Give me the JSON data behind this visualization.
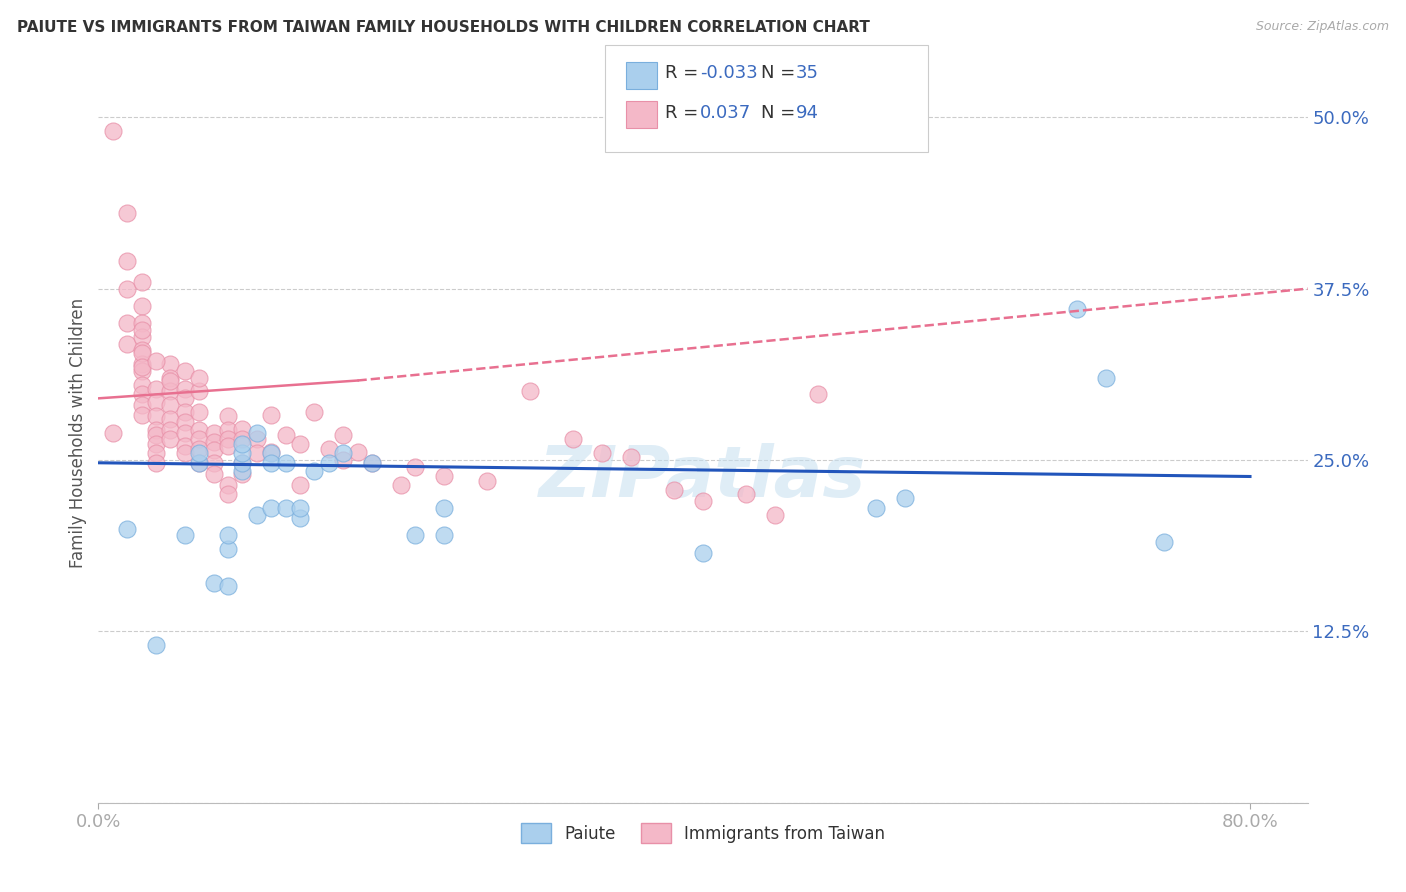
{
  "title": "PAIUTE VS IMMIGRANTS FROM TAIWAN FAMILY HOUSEHOLDS WITH CHILDREN CORRELATION CHART",
  "source": "Source: ZipAtlas.com",
  "ylabel": "Family Households with Children",
  "xlim": [
    0.0,
    0.84
  ],
  "ylim": [
    0.0,
    0.54
  ],
  "yticks": [
    0.0,
    0.125,
    0.25,
    0.375,
    0.5
  ],
  "ytick_labels": [
    "",
    "12.5%",
    "25.0%",
    "37.5%",
    "50.0%"
  ],
  "xtick_vals": [
    0.0,
    0.8
  ],
  "xtick_labels": [
    "0.0%",
    "80.0%"
  ],
  "blue_scatter_color": "#aacfed",
  "pink_scatter_color": "#f4b8c8",
  "blue_edge_color": "#7aafdd",
  "pink_edge_color": "#e890a8",
  "line_blue_color": "#2255bb",
  "line_pink_color": "#e87090",
  "watermark": "ZIPatlas",
  "paiute_line": [
    0.0,
    0.248,
    0.8,
    0.238
  ],
  "taiwan_line_solid": [
    0.0,
    0.295,
    0.18,
    0.308
  ],
  "taiwan_line_dash": [
    0.18,
    0.308,
    0.84,
    0.375
  ],
  "paiute_x": [
    0.02,
    0.04,
    0.06,
    0.07,
    0.07,
    0.08,
    0.09,
    0.09,
    0.09,
    0.1,
    0.1,
    0.1,
    0.1,
    0.11,
    0.11,
    0.12,
    0.12,
    0.12,
    0.13,
    0.13,
    0.14,
    0.14,
    0.15,
    0.16,
    0.17,
    0.19,
    0.22,
    0.24,
    0.24,
    0.42,
    0.54,
    0.56,
    0.68,
    0.7,
    0.74
  ],
  "paiute_y": [
    0.2,
    0.115,
    0.195,
    0.248,
    0.255,
    0.16,
    0.158,
    0.185,
    0.195,
    0.242,
    0.248,
    0.255,
    0.262,
    0.27,
    0.21,
    0.255,
    0.248,
    0.215,
    0.215,
    0.248,
    0.208,
    0.215,
    0.242,
    0.248,
    0.255,
    0.248,
    0.195,
    0.195,
    0.215,
    0.182,
    0.215,
    0.222,
    0.36,
    0.31,
    0.19
  ],
  "taiwan_x": [
    0.01,
    0.01,
    0.02,
    0.02,
    0.02,
    0.02,
    0.02,
    0.03,
    0.03,
    0.03,
    0.03,
    0.03,
    0.03,
    0.03,
    0.03,
    0.03,
    0.03,
    0.03,
    0.04,
    0.04,
    0.04,
    0.04,
    0.04,
    0.04,
    0.04,
    0.04,
    0.05,
    0.05,
    0.05,
    0.05,
    0.05,
    0.05,
    0.05,
    0.06,
    0.06,
    0.06,
    0.06,
    0.06,
    0.06,
    0.06,
    0.07,
    0.07,
    0.07,
    0.07,
    0.07,
    0.07,
    0.08,
    0.08,
    0.08,
    0.08,
    0.08,
    0.09,
    0.09,
    0.09,
    0.09,
    0.09,
    0.09,
    0.1,
    0.1,
    0.1,
    0.1,
    0.11,
    0.11,
    0.12,
    0.12,
    0.13,
    0.14,
    0.14,
    0.15,
    0.16,
    0.17,
    0.17,
    0.18,
    0.19,
    0.21,
    0.22,
    0.24,
    0.27,
    0.3,
    0.33,
    0.35,
    0.37,
    0.4,
    0.42,
    0.45,
    0.47,
    0.5,
    0.03,
    0.03,
    0.03,
    0.04,
    0.05,
    0.06,
    0.07
  ],
  "taiwan_y": [
    0.49,
    0.27,
    0.43,
    0.395,
    0.375,
    0.35,
    0.335,
    0.38,
    0.362,
    0.35,
    0.34,
    0.33,
    0.32,
    0.315,
    0.305,
    0.298,
    0.29,
    0.283,
    0.302,
    0.292,
    0.282,
    0.272,
    0.268,
    0.262,
    0.255,
    0.248,
    0.32,
    0.31,
    0.3,
    0.29,
    0.28,
    0.272,
    0.265,
    0.302,
    0.295,
    0.285,
    0.278,
    0.27,
    0.26,
    0.255,
    0.3,
    0.285,
    0.272,
    0.265,
    0.258,
    0.248,
    0.27,
    0.263,
    0.257,
    0.248,
    0.24,
    0.282,
    0.272,
    0.265,
    0.26,
    0.232,
    0.225,
    0.273,
    0.265,
    0.248,
    0.24,
    0.265,
    0.255,
    0.283,
    0.256,
    0.268,
    0.262,
    0.232,
    0.285,
    0.258,
    0.268,
    0.25,
    0.256,
    0.248,
    0.232,
    0.245,
    0.238,
    0.235,
    0.3,
    0.265,
    0.255,
    0.252,
    0.228,
    0.22,
    0.225,
    0.21,
    0.298,
    0.345,
    0.328,
    0.318,
    0.322,
    0.308,
    0.315,
    0.31
  ]
}
